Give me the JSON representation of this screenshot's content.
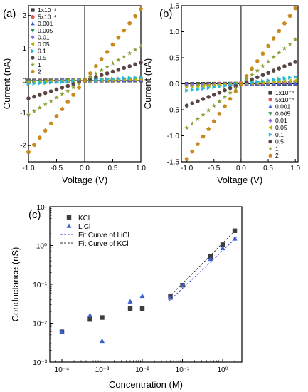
{
  "chart_data": [
    {
      "panel": "(a)",
      "type": "scatter",
      "xlabel": "Voltage (V)",
      "ylabel": "Current (nA)",
      "xlim": [
        -1.0,
        1.0
      ],
      "ylim": [
        -2.5,
        2.3
      ],
      "xticks": [
        "-1.0",
        "-0.5",
        "0.0",
        "0.5",
        "1.0"
      ],
      "yticks": [
        "-2",
        "-1",
        "0",
        "1",
        "2"
      ],
      "legend_position": "top-left",
      "x": [
        -1.0,
        -0.9,
        -0.8,
        -0.7,
        -0.6,
        -0.5,
        -0.4,
        -0.3,
        -0.2,
        -0.1,
        0.0,
        0.1,
        0.2,
        0.3,
        0.4,
        0.5,
        0.6,
        0.7,
        0.8,
        0.9,
        1.0
      ],
      "series": [
        {
          "name": "1x10⁻⁴",
          "color": "#3d3d3d",
          "marker": "square",
          "slope": 0.006
        },
        {
          "name": "5x10⁻⁴",
          "color": "#d9534f",
          "marker": "circle",
          "slope": 0.015
        },
        {
          "name": "0.001",
          "color": "#3c5fcf",
          "marker": "triangle-up",
          "slope": 0.012
        },
        {
          "name": "0.005",
          "color": "#2e8b57",
          "marker": "triangle-down",
          "slope": 0.03
        },
        {
          "name": "0.01",
          "color": "#8a66d6",
          "marker": "diamond",
          "slope": 0.05
        },
        {
          "name": "0.05",
          "color": "#b8b800",
          "marker": "triangle-left",
          "slope": 0.05
        },
        {
          "name": "0.1",
          "color": "#29b6d6",
          "marker": "triangle-right",
          "slope": 0.1
        },
        {
          "name": "0.5",
          "color": "#5a4545",
          "marker": "circle",
          "slope": 0.55
        },
        {
          "name": "1",
          "color": "#88a036",
          "marker": "star",
          "slope": 1.05
        },
        {
          "name": "2",
          "color": "#c98a1d",
          "marker": "pentagon",
          "slope": 2.2
        }
      ]
    },
    {
      "panel": "(b)",
      "type": "scatter",
      "xlabel": "Voltage (V)",
      "ylabel": "Current (nA)",
      "xlim": [
        -1.1,
        1.05
      ],
      "ylim": [
        -1.5,
        1.5
      ],
      "xticks": [
        "-1.0",
        "-0.5",
        "0.0",
        "0.5",
        "1.0"
      ],
      "yticks": [
        "-1.5",
        "-1.0",
        "-0.5",
        "0.0",
        "0.5",
        "1.0",
        "1.5"
      ],
      "legend_position": "bottom-right",
      "x": [
        -1.0,
        -0.9,
        -0.8,
        -0.7,
        -0.6,
        -0.5,
        -0.4,
        -0.3,
        -0.2,
        -0.1,
        0.0,
        0.1,
        0.2,
        0.3,
        0.4,
        0.5,
        0.6,
        0.7,
        0.8,
        0.9,
        1.0
      ],
      "series": [
        {
          "name": "1x10⁻⁴",
          "color": "#3d3d3d",
          "marker": "square",
          "slope": 0.005
        },
        {
          "name": "5x10⁻⁴",
          "color": "#d9534f",
          "marker": "circle",
          "slope": 0.012
        },
        {
          "name": "0.001",
          "color": "#3c5fcf",
          "marker": "triangle-up",
          "slope": 0.008
        },
        {
          "name": "0.005",
          "color": "#2e8b57",
          "marker": "triangle-down",
          "slope": 0.03
        },
        {
          "name": "0.01",
          "color": "#8a66d6",
          "marker": "diamond",
          "slope": 0.04
        },
        {
          "name": "0.05",
          "color": "#b8b800",
          "marker": "triangle-left",
          "slope": 0.06
        },
        {
          "name": "0.1",
          "color": "#29b6d6",
          "marker": "triangle-right",
          "slope": 0.13
        },
        {
          "name": "0.5",
          "color": "#5a4545",
          "marker": "circle",
          "slope": 0.42
        },
        {
          "name": "1",
          "color": "#88a036",
          "marker": "star",
          "slope": 0.85
        },
        {
          "name": "2",
          "color": "#c98a1d",
          "marker": "pentagon",
          "slope": 1.45
        }
      ]
    },
    {
      "panel": "(c)",
      "type": "scatter",
      "xlabel": "Concentration (M)",
      "ylabel": "Conductance (nS)",
      "xscale": "log",
      "yscale": "log",
      "xlim": [
        5e-05,
        3
      ],
      "ylim": [
        0.001,
        10
      ],
      "xticks": [
        "10⁻⁴",
        "10⁻³",
        "10⁻²",
        "10⁻¹",
        "10⁰"
      ],
      "yticks": [
        "10⁻³",
        "10⁻²",
        "10⁻¹",
        "10⁰",
        "10¹"
      ],
      "legend_position": "top-left",
      "series": [
        {
          "name": "KCl",
          "color": "#3d3d3d",
          "marker": "square",
          "x": [
            0.0001,
            0.0005,
            0.001,
            0.005,
            0.01,
            0.05,
            0.1,
            0.5,
            1,
            2
          ],
          "y": [
            0.006,
            0.0125,
            0.014,
            0.024,
            0.024,
            0.05,
            0.095,
            0.52,
            1.05,
            2.4
          ]
        },
        {
          "name": "LiCl",
          "color": "#3c5fcf",
          "marker": "triangle-up",
          "x": [
            0.0001,
            0.0005,
            0.001,
            0.005,
            0.01,
            0.05,
            0.1,
            0.5,
            1,
            2
          ],
          "y": [
            0.006,
            0.016,
            0.0035,
            0.036,
            0.05,
            0.045,
            0.095,
            0.45,
            0.85,
            1.5
          ]
        }
      ],
      "fits": [
        {
          "name": "Fit Curve of LiCl",
          "color": "#2b3fcf",
          "x": [
            0.045,
            2.2
          ],
          "y": [
            0.036,
            1.6
          ]
        },
        {
          "name": "Fit Curve of KCl",
          "color": "#333333",
          "x": [
            0.045,
            2.2
          ],
          "y": [
            0.046,
            2.6
          ]
        }
      ]
    }
  ]
}
